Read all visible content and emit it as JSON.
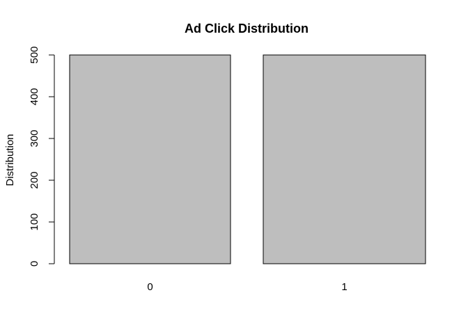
{
  "chart_data": {
    "type": "bar",
    "title": "Ad Click Distribution",
    "xlabel": "",
    "ylabel": "Distribution",
    "categories": [
      "0",
      "1"
    ],
    "values": [
      500,
      500
    ],
    "ylim": [
      0,
      500
    ],
    "yticks": [
      "0",
      "100",
      "200",
      "300",
      "400",
      "500"
    ],
    "bar_color": "#bebebe",
    "bar_border_color": "#000000",
    "grid": false,
    "legend": "none"
  }
}
